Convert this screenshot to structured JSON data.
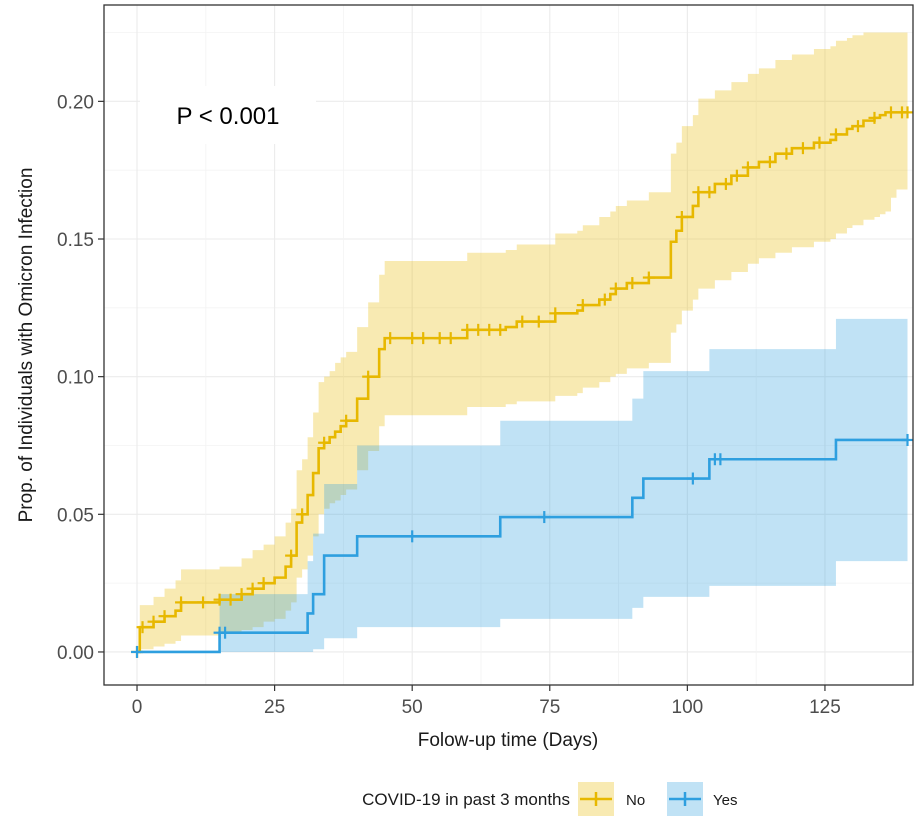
{
  "chart_data": {
    "type": "line",
    "subtype": "kaplan-meier cumulative incidence (step) with confidence bands",
    "xlabel": "Folow-up time (Days)",
    "ylabel": "Prop. of Individuals with Omicron Infection",
    "xlim": [
      -6,
      141
    ],
    "ylim": [
      -0.012,
      0.235
    ],
    "x_ticks": [
      0,
      25,
      50,
      75,
      100,
      125
    ],
    "x_tick_labels": [
      "0",
      "25",
      "50",
      "75",
      "100",
      "125"
    ],
    "y_ticks": [
      0.0,
      0.05,
      0.1,
      0.15,
      0.2
    ],
    "y_tick_labels": [
      "0.00",
      "0.05",
      "0.10",
      "0.15",
      "0.20"
    ],
    "grid": true,
    "annotation": "P < 0.001",
    "legend": {
      "title": "COVID-19 in past 3 months",
      "position": "bottom",
      "entries": [
        "No",
        "Yes"
      ]
    },
    "series": [
      {
        "name": "No",
        "color": "#E7B800",
        "step": {
          "x": [
            0,
            0.5,
            3,
            5,
            7,
            8,
            15,
            19,
            21,
            23,
            25,
            27,
            28,
            29,
            30,
            31,
            32,
            33,
            34,
            35,
            36,
            37,
            38,
            40,
            42,
            44,
            45,
            60,
            67,
            69,
            76,
            80,
            81,
            84,
            86,
            87,
            89,
            93,
            97,
            98,
            99,
            101,
            102,
            105,
            108,
            111,
            113,
            116,
            119,
            123,
            126,
            127,
            129,
            130,
            132,
            134,
            135,
            136,
            137,
            138,
            140
          ],
          "y": [
            0,
            0.009,
            0.011,
            0.013,
            0.015,
            0.018,
            0.019,
            0.021,
            0.023,
            0.025,
            0.027,
            0.031,
            0.035,
            0.047,
            0.05,
            0.057,
            0.065,
            0.074,
            0.076,
            0.078,
            0.08,
            0.082,
            0.084,
            0.092,
            0.1,
            0.11,
            0.114,
            0.117,
            0.118,
            0.12,
            0.123,
            0.124,
            0.126,
            0.128,
            0.13,
            0.132,
            0.134,
            0.136,
            0.149,
            0.153,
            0.158,
            0.162,
            0.167,
            0.17,
            0.173,
            0.176,
            0.178,
            0.181,
            0.183,
            0.185,
            0.186,
            0.188,
            0.19,
            0.191,
            0.193,
            0.194,
            0.195,
            0.196,
            0.196,
            0.196,
            0.196
          ]
        },
        "ci_lower": [
          0,
          0.001,
          0.002,
          0.003,
          0.004,
          0.006,
          0.007,
          0.008,
          0.009,
          0.011,
          0.012,
          0.015,
          0.018,
          0.027,
          0.03,
          0.035,
          0.042,
          0.05,
          0.052,
          0.054,
          0.055,
          0.057,
          0.059,
          0.066,
          0.073,
          0.082,
          0.086,
          0.089,
          0.09,
          0.091,
          0.093,
          0.094,
          0.096,
          0.098,
          0.1,
          0.101,
          0.103,
          0.105,
          0.116,
          0.119,
          0.124,
          0.128,
          0.132,
          0.135,
          0.138,
          0.141,
          0.143,
          0.145,
          0.147,
          0.149,
          0.15,
          0.152,
          0.154,
          0.155,
          0.157,
          0.158,
          0.159,
          0.16,
          0.165,
          0.168,
          0.168
        ],
        "ci_upper": [
          0,
          0.017,
          0.02,
          0.023,
          0.026,
          0.03,
          0.031,
          0.034,
          0.037,
          0.039,
          0.042,
          0.047,
          0.052,
          0.066,
          0.07,
          0.078,
          0.087,
          0.098,
          0.1,
          0.102,
          0.105,
          0.107,
          0.109,
          0.118,
          0.127,
          0.137,
          0.142,
          0.145,
          0.146,
          0.148,
          0.152,
          0.153,
          0.155,
          0.158,
          0.16,
          0.162,
          0.164,
          0.167,
          0.181,
          0.185,
          0.191,
          0.195,
          0.201,
          0.204,
          0.207,
          0.21,
          0.212,
          0.215,
          0.217,
          0.219,
          0.22,
          0.222,
          0.223,
          0.224,
          0.225,
          0.225,
          0.225,
          0.225,
          0.225,
          0.225,
          0.225
        ],
        "censor_x": [
          0,
          1,
          3,
          5,
          8,
          12,
          15,
          17,
          19,
          21,
          23,
          28,
          30,
          34,
          38,
          42,
          46,
          50,
          52,
          55,
          57,
          60,
          62,
          64,
          66,
          70,
          73,
          76,
          81,
          85,
          87,
          90,
          93,
          99,
          102,
          104,
          107,
          109,
          111,
          115,
          118,
          121,
          124,
          127,
          131,
          134,
          137,
          139,
          140
        ]
      },
      {
        "name": "Yes",
        "color": "#2E9FDF",
        "step": {
          "x": [
            0,
            15,
            31,
            32,
            34,
            40,
            66,
            90,
            92,
            104,
            127,
            140
          ],
          "y": [
            0,
            0.007,
            0.014,
            0.021,
            0.035,
            0.042,
            0.049,
            0.056,
            0.063,
            0.07,
            0.077,
            0.077
          ]
        },
        "ci_lower": [
          0,
          0,
          0,
          0.001,
          0.005,
          0.009,
          0.012,
          0.016,
          0.02,
          0.024,
          0.033,
          0.033
        ],
        "ci_upper": [
          0,
          0.021,
          0.033,
          0.043,
          0.061,
          0.075,
          0.084,
          0.092,
          0.102,
          0.11,
          0.121,
          0.121
        ],
        "censor_x": [
          0,
          15,
          16,
          50,
          74,
          101,
          105,
          106,
          140
        ]
      }
    ]
  }
}
